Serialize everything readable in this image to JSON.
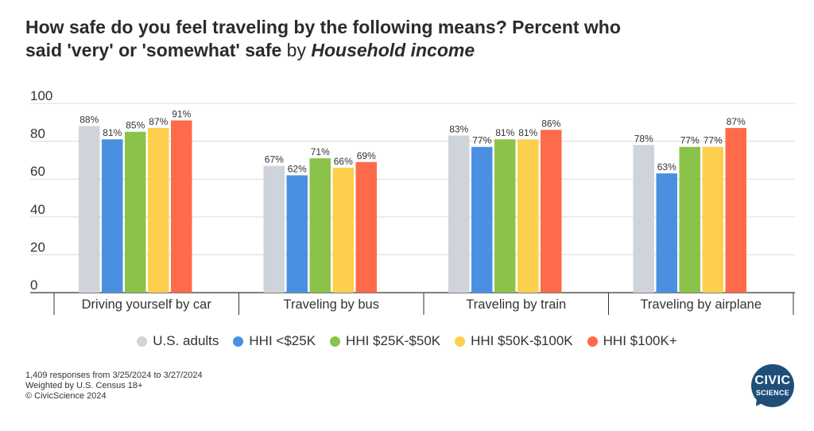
{
  "title": {
    "line1": "How safe do you feel traveling by the following means? Percent who",
    "line2_bold": "said 'very' or 'somewhat' safe",
    "line2_normal": " by ",
    "line2_italic": "Household income"
  },
  "chart_data": {
    "type": "bar",
    "categories": [
      "Driving yourself by car",
      "Traveling by bus",
      "Traveling by train",
      "Traveling by airplane"
    ],
    "series": [
      {
        "name": "U.S. adults",
        "color": "#cfd3da",
        "values": [
          88,
          67,
          83,
          78
        ]
      },
      {
        "name": "HHI <$25K",
        "color": "#4a90e2",
        "values": [
          81,
          62,
          77,
          63
        ]
      },
      {
        "name": "HHI $25K-$50K",
        "color": "#8bc34a",
        "values": [
          85,
          71,
          81,
          77
        ]
      },
      {
        "name": "HHI $50K-$100K",
        "color": "#fccf4d",
        "values": [
          87,
          66,
          81,
          77
        ]
      },
      {
        "name": "HHI $100K+",
        "color": "#ff6b4a",
        "values": [
          91,
          69,
          86,
          87
        ]
      }
    ],
    "data_labels": [
      [
        "88%",
        "67%",
        "83%",
        "78%"
      ],
      [
        "81%",
        "62%",
        "77%",
        "63%"
      ],
      [
        "85%",
        "71%",
        "81%",
        "77%"
      ],
      [
        "87%",
        "66%",
        "81%",
        "77%"
      ],
      [
        "91%",
        "69%",
        "86%",
        "87%"
      ]
    ],
    "yticks": [
      "0",
      "20",
      "40",
      "60",
      "80",
      "100"
    ],
    "ylim": [
      0,
      100
    ],
    "grid": true,
    "legend_position": "bottom"
  },
  "footnote": {
    "line1": "1,409 responses from 3/25/2024 to 3/27/2024",
    "line2": "Weighted by U.S. Census 18+",
    "line3": "© CivicScience 2024"
  },
  "logo": {
    "line1": "CIVIC",
    "line2": "SCIENCE"
  }
}
